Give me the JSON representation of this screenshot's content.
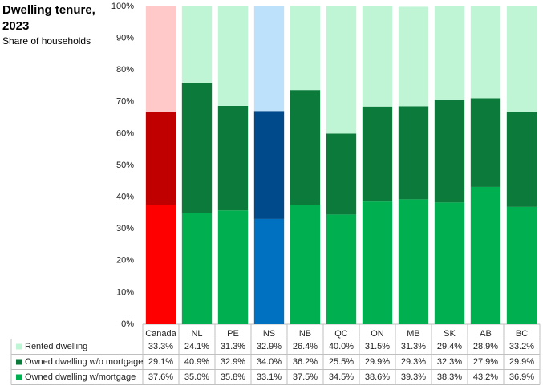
{
  "chart_data": {
    "type": "stacked_bar",
    "title": "Dwelling tenure, 2023",
    "subtitle": "Share of households",
    "categories": [
      "Canada",
      "NL",
      "PE",
      "NS",
      "NB",
      "QC",
      "ON",
      "MB",
      "SK",
      "AB",
      "BC"
    ],
    "series": [
      {
        "name": "Rented dwelling",
        "color": "#bff5d5",
        "colors": [
          "#ffc9c9",
          "#bff5d5",
          "#bff5d5",
          "#bde0fb",
          "#bff5d5",
          "#bff5d5",
          "#bff5d5",
          "#bff5d5",
          "#bff5d5",
          "#bff5d5",
          "#bff5d5"
        ],
        "values": [
          33.3,
          24.1,
          31.3,
          32.9,
          26.4,
          40.0,
          31.5,
          31.3,
          29.4,
          28.9,
          33.2
        ],
        "value_labels": [
          "33.3%",
          "24.1%",
          "31.3%",
          "32.9%",
          "26.4%",
          "40.0%",
          "31.5%",
          "31.3%",
          "29.4%",
          "28.9%",
          "33.2%"
        ]
      },
      {
        "name": "Owned dwelling w/o mortgage",
        "color": "#0b7a3b",
        "colors": [
          "#c00000",
          "#0b7a3b",
          "#0b7a3b",
          "#004a8c",
          "#0b7a3b",
          "#0b7a3b",
          "#0b7a3b",
          "#0b7a3b",
          "#0b7a3b",
          "#0b7a3b",
          "#0b7a3b"
        ],
        "values": [
          29.1,
          40.9,
          32.9,
          34.0,
          36.2,
          25.5,
          29.9,
          29.3,
          32.3,
          27.9,
          29.9
        ],
        "value_labels": [
          "29.1%",
          "40.9%",
          "32.9%",
          "34.0%",
          "36.2%",
          "25.5%",
          "29.9%",
          "29.3%",
          "32.3%",
          "27.9%",
          "29.9%"
        ]
      },
      {
        "name": "Owned dwelling w/mortgage",
        "color": "#00b050",
        "colors": [
          "#ff0000",
          "#00b050",
          "#00b050",
          "#0070c0",
          "#00b050",
          "#00b050",
          "#00b050",
          "#00b050",
          "#00b050",
          "#00b050",
          "#00b050"
        ],
        "values": [
          37.6,
          35.0,
          35.8,
          33.1,
          37.5,
          34.5,
          38.6,
          39.3,
          38.3,
          43.2,
          36.9
        ],
        "value_labels": [
          "37.6%",
          "35.0%",
          "35.8%",
          "33.1%",
          "37.5%",
          "34.5%",
          "38.6%",
          "39.3%",
          "38.3%",
          "43.2%",
          "36.9%"
        ]
      }
    ],
    "ylim": [
      0,
      100
    ],
    "yticks": [
      {
        "value": 0,
        "label": "0%"
      },
      {
        "value": 10,
        "label": "10%"
      },
      {
        "value": 20,
        "label": "20%"
      },
      {
        "value": 30,
        "label": "30%"
      },
      {
        "value": 40,
        "label": "40%"
      },
      {
        "value": 50,
        "label": "50%"
      },
      {
        "value": 60,
        "label": "60%"
      },
      {
        "value": 70,
        "label": "70%"
      },
      {
        "value": 80,
        "label": "80%"
      },
      {
        "value": 90,
        "label": "90%"
      },
      {
        "value": 100,
        "label": "100%"
      }
    ],
    "grid": false
  }
}
